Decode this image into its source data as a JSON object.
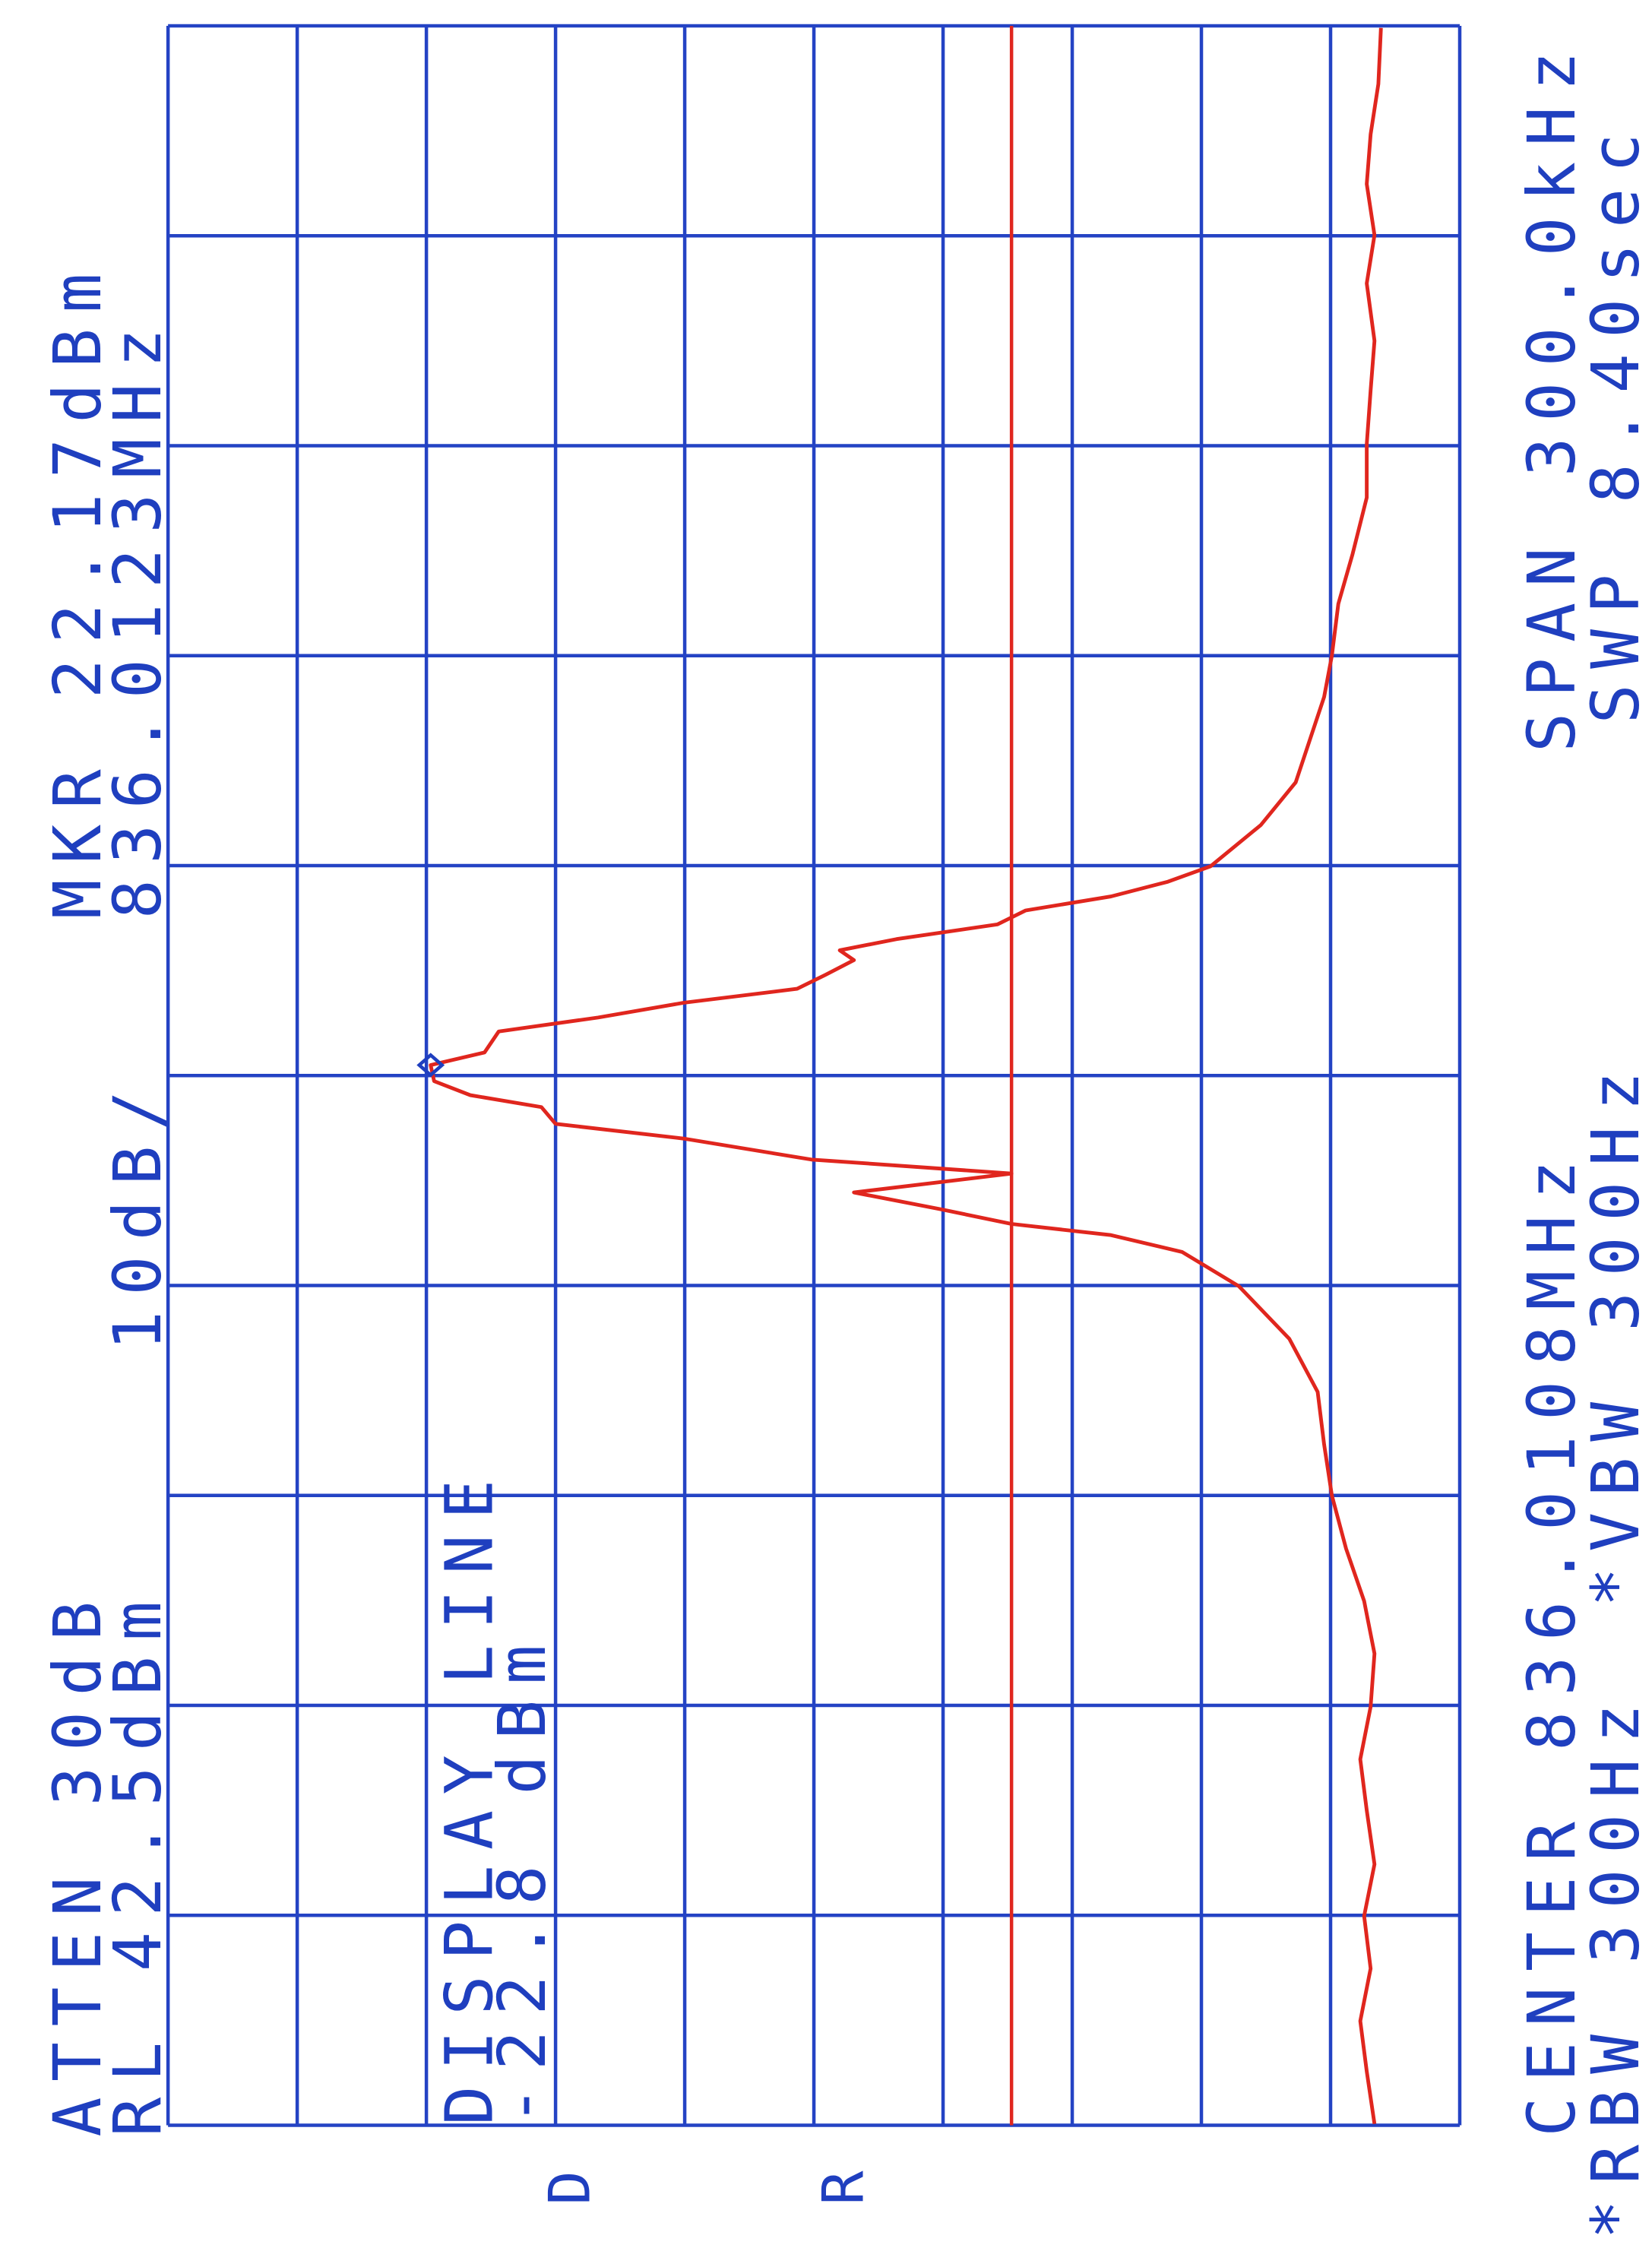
{
  "chart_data": {
    "type": "line",
    "atten": "ATTEN 30dB",
    "ref_level": "RL 42.5dBm",
    "scale": "10dB/",
    "marker": {
      "label": "MKR 22.17dBm",
      "freq_label": "836.0123MHz",
      "x": 836.0123,
      "y": 22.17,
      "color": "#1f3fbf"
    },
    "display_line": {
      "label": "DISPLAY LINE",
      "value_label": "-22.8 dBm",
      "value": -22.8,
      "color": "#e0261e"
    },
    "center": "CENTER 836.0108MHz",
    "span": "SPAN 300.0kHz",
    "rbw": "*RBW 300Hz",
    "vbw": "*VBW 300Hz",
    "sweep": "SWP 8.40sec",
    "side_labels": [
      "D",
      "R"
    ],
    "xlim": [
      835.8608,
      836.1608
    ],
    "ylim": [
      -57.5,
      42.5
    ],
    "xticks": [
      835.8608,
      835.8908,
      835.9208,
      835.9508,
      835.9808,
      836.0108,
      836.0408,
      836.0708,
      836.1008,
      836.1308,
      836.1608
    ],
    "yticks": [
      42.5,
      32.5,
      22.5,
      12.5,
      2.5,
      -7.5,
      -17.5,
      -27.5,
      -37.5,
      -47.5,
      -57.5
    ],
    "grid": true,
    "grid_color": "#2443c4",
    "x": [
      835.861,
      835.8685,
      835.8757,
      835.8832,
      835.8907,
      835.8981,
      835.9058,
      835.9131,
      835.9206,
      835.9282,
      835.9357,
      835.9432,
      835.9508,
      835.9581,
      835.9656,
      835.9732,
      835.9807,
      835.9856,
      835.988,
      835.9896,
      835.9917,
      835.9941,
      835.9968,
      835.9988,
      836.0018,
      836.0039,
      836.0063,
      836.008,
      836.01,
      836.0123,
      836.0141,
      836.0171,
      836.0191,
      836.0212,
      836.0232,
      836.0252,
      836.0273,
      836.0287,
      836.0303,
      836.0324,
      836.0344,
      836.0364,
      836.0385,
      836.0407,
      836.0466,
      836.0527,
      836.0588,
      836.0649,
      836.0708,
      836.0782,
      836.0853,
      836.0934,
      836.101,
      836.1087,
      836.1158,
      836.124,
      836.1309,
      836.1382,
      836.1453,
      836.1525,
      836.1605
    ],
    "series": [
      {
        "color": "#e0261e",
        "values": [
          -50.9,
          -50.3,
          -49.8,
          -50.6,
          -50.1,
          -50.9,
          -50.3,
          -49.8,
          -50.6,
          -50.9,
          -50.1,
          -48.7,
          -47.6,
          -47.0,
          -46.5,
          -44.3,
          -40.4,
          -36.0,
          -30.5,
          -22.8,
          -17.3,
          -10.6,
          -22.8,
          -7.3,
          2.6,
          12.5,
          13.6,
          19.1,
          21.9,
          22.17,
          18.0,
          16.9,
          9.2,
          2.6,
          -6.2,
          -8.4,
          -10.6,
          -9.5,
          -13.9,
          -21.7,
          -23.9,
          -30.5,
          -34.9,
          -38.2,
          -42.1,
          -44.8,
          -45.9,
          -47.0,
          -47.6,
          -48.1,
          -49.2,
          -50.3,
          -50.3,
          -50.6,
          -50.9,
          -50.3,
          -50.9,
          -50.3,
          -50.6,
          -51.2,
          -51.4
        ]
      }
    ]
  }
}
